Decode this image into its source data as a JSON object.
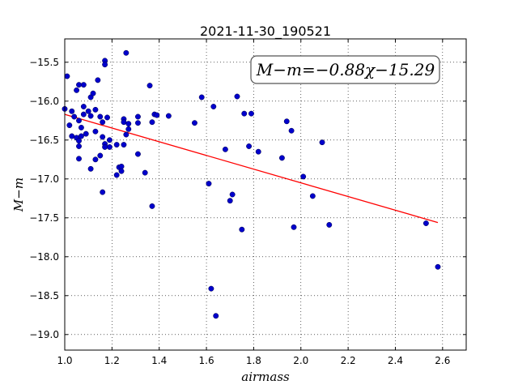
{
  "chart_data": {
    "type": "scatter",
    "title": "2021-11-30_190521",
    "xlabel": "airmass",
    "ylabel": "M−m",
    "xlim": [
      1.0,
      2.7
    ],
    "ylim": [
      -19.2,
      -15.2
    ],
    "y_inverted": true,
    "grid": true,
    "x_ticks": [
      1.0,
      1.2,
      1.4,
      1.6,
      1.8,
      2.0,
      2.2,
      2.4,
      2.6
    ],
    "y_ticks": [
      -15.5,
      -16.0,
      -16.5,
      -17.0,
      -17.5,
      -18.0,
      -18.5,
      -19.0
    ],
    "x_tick_labels": [
      "1.0",
      "1.2",
      "1.4",
      "1.6",
      "1.8",
      "2.0",
      "2.2",
      "2.4",
      "2.6"
    ],
    "y_tick_labels": [
      "−15.5",
      "−16.0",
      "−16.5",
      "−17.0",
      "−17.5",
      "−18.0",
      "−18.5",
      "−19.0"
    ],
    "annotation": "M−m=−0.88χ−15.29",
    "fit": {
      "slope": -0.88,
      "intercept": -15.29,
      "x_range": [
        1.0,
        2.58
      ],
      "color": "#ff0000"
    },
    "point_color": "#0000cc",
    "points": [
      [
        1.0,
        -16.1
      ],
      [
        1.01,
        -15.68
      ],
      [
        1.02,
        -16.31
      ],
      [
        1.03,
        -16.13
      ],
      [
        1.03,
        -16.45
      ],
      [
        1.04,
        -16.2
      ],
      [
        1.05,
        -15.86
      ],
      [
        1.05,
        -16.47
      ],
      [
        1.06,
        -15.79
      ],
      [
        1.06,
        -16.25
      ],
      [
        1.06,
        -16.51
      ],
      [
        1.06,
        -16.58
      ],
      [
        1.06,
        -16.74
      ],
      [
        1.07,
        -16.34
      ],
      [
        1.07,
        -16.45
      ],
      [
        1.08,
        -15.79
      ],
      [
        1.08,
        -16.07
      ],
      [
        1.08,
        -16.17
      ],
      [
        1.09,
        -16.42
      ],
      [
        1.1,
        -16.13
      ],
      [
        1.11,
        -15.95
      ],
      [
        1.11,
        -16.19
      ],
      [
        1.11,
        -16.87
      ],
      [
        1.12,
        -15.9
      ],
      [
        1.13,
        -16.11
      ],
      [
        1.13,
        -16.39
      ],
      [
        1.13,
        -16.75
      ],
      [
        1.14,
        -15.73
      ],
      [
        1.15,
        -16.2
      ],
      [
        1.15,
        -16.7
      ],
      [
        1.16,
        -16.27
      ],
      [
        1.16,
        -16.46
      ],
      [
        1.16,
        -17.17
      ],
      [
        1.17,
        -15.48
      ],
      [
        1.17,
        -15.53
      ],
      [
        1.17,
        -16.55
      ],
      [
        1.17,
        -16.59
      ],
      [
        1.18,
        -16.21
      ],
      [
        1.19,
        -16.5
      ],
      [
        1.19,
        -16.59
      ],
      [
        1.22,
        -16.56
      ],
      [
        1.22,
        -16.95
      ],
      [
        1.23,
        -16.85
      ],
      [
        1.24,
        -16.84
      ],
      [
        1.24,
        -16.9
      ],
      [
        1.25,
        -16.23
      ],
      [
        1.25,
        -16.27
      ],
      [
        1.25,
        -16.56
      ],
      [
        1.26,
        -15.38
      ],
      [
        1.26,
        -16.43
      ],
      [
        1.27,
        -16.29
      ],
      [
        1.27,
        -16.36
      ],
      [
        1.31,
        -16.2
      ],
      [
        1.31,
        -16.28
      ],
      [
        1.31,
        -16.68
      ],
      [
        1.34,
        -16.92
      ],
      [
        1.36,
        -15.8
      ],
      [
        1.37,
        -16.27
      ],
      [
        1.37,
        -17.35
      ],
      [
        1.38,
        -16.17
      ],
      [
        1.39,
        -16.18
      ],
      [
        1.44,
        -16.19
      ],
      [
        1.55,
        -16.28
      ],
      [
        1.58,
        -15.95
      ],
      [
        1.61,
        -17.06
      ],
      [
        1.62,
        -18.41
      ],
      [
        1.63,
        -16.07
      ],
      [
        1.64,
        -18.76
      ],
      [
        1.68,
        -16.62
      ],
      [
        1.7,
        -17.28
      ],
      [
        1.71,
        -17.2
      ],
      [
        1.73,
        -15.94
      ],
      [
        1.75,
        -17.65
      ],
      [
        1.76,
        -16.16
      ],
      [
        1.78,
        -16.58
      ],
      [
        1.79,
        -16.16
      ],
      [
        1.82,
        -16.65
      ],
      [
        1.92,
        -16.73
      ],
      [
        1.94,
        -16.26
      ],
      [
        1.96,
        -16.38
      ],
      [
        1.97,
        -17.62
      ],
      [
        2.01,
        -16.97
      ],
      [
        2.05,
        -17.22
      ],
      [
        2.09,
        -16.53
      ],
      [
        2.12,
        -17.59
      ],
      [
        2.53,
        -17.57
      ],
      [
        2.58,
        -18.13
      ]
    ]
  }
}
